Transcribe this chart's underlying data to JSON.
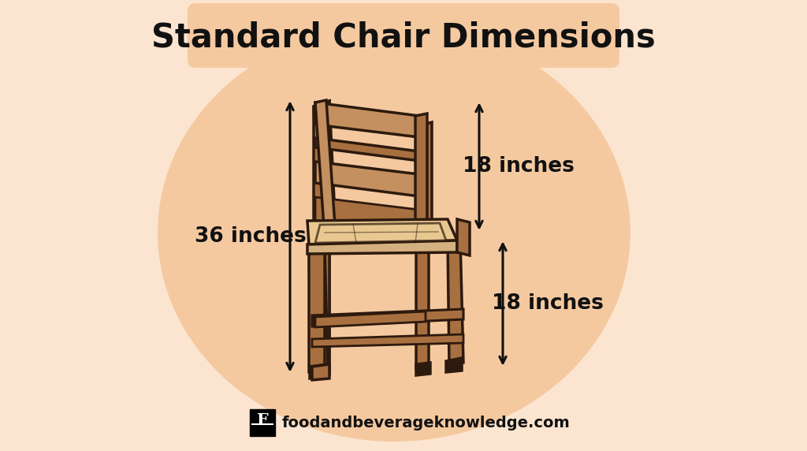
{
  "title": "Standard Chair Dimensions",
  "title_fontsize": 30,
  "title_fontweight": "bold",
  "background_color": "#fce5d0",
  "circle_color": "#f5c9a0",
  "label_36": "36 inches",
  "label_18_top": "18 inches",
  "label_18_bottom": "18 inches",
  "label_fontsize": 19,
  "label_fontweight": "bold",
  "watermark_text": "foodandbeverageknowledge.com",
  "watermark_fontsize": 14,
  "arrow_color": "#111111",
  "text_color": "#111111",
  "chair_light": "#c49060",
  "chair_mid": "#a87040",
  "chair_dark": "#2d1a0e",
  "seat_fill": "#d4b080",
  "seat_cushion": "#e8c890"
}
